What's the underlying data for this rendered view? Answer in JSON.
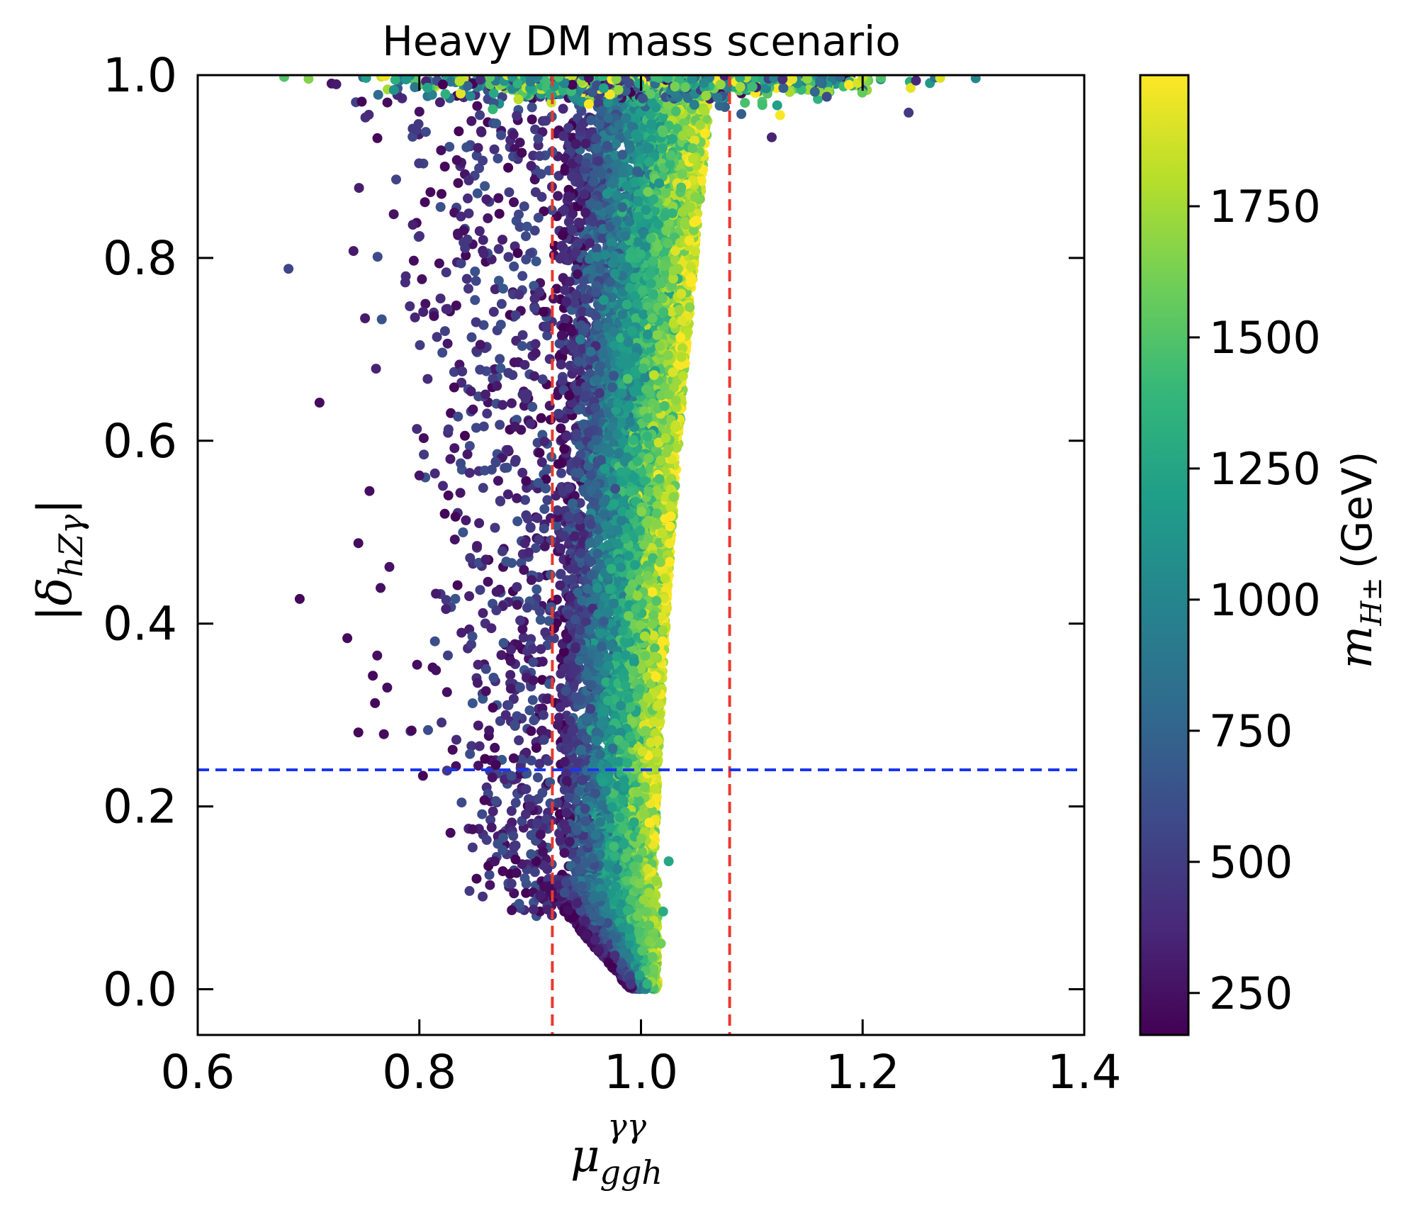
{
  "chart_data": {
    "type": "scatter",
    "title": "Heavy DM mass scenario",
    "xlabel": {
      "main": "μ",
      "sub": "ggh",
      "sup": "γγ"
    },
    "ylabel": {
      "open": "|",
      "main": "δ",
      "sub": "hZγ",
      "close": "|"
    },
    "colorbar_label": {
      "main": "m",
      "sub": "H±",
      "unit": "(GeV)"
    },
    "xlim": [
      0.6,
      1.4
    ],
    "ylim": [
      -0.05,
      1.0
    ],
    "x_ticks": [
      "0.6",
      "0.8",
      "1.0",
      "1.2",
      "1.4"
    ],
    "y_ticks": [
      "0.0",
      "0.2",
      "0.4",
      "0.6",
      "0.8",
      "1.0"
    ],
    "colorbar": {
      "range": [
        170,
        2000
      ],
      "ticks": [
        "250",
        "500",
        "750",
        "1000",
        "1250",
        "1500",
        "1750"
      ],
      "colormap": [
        "#440154",
        "#482878",
        "#3e4989",
        "#31688e",
        "#26828e",
        "#1f9e89",
        "#35b779",
        "#6ece58",
        "#b5de2b",
        "#fde725"
      ]
    },
    "reference_lines": [
      {
        "orientation": "vertical",
        "value": 0.92,
        "color": "#e8392e",
        "style": "dashed"
      },
      {
        "orientation": "vertical",
        "value": 1.08,
        "color": "#e8392e",
        "style": "dashed"
      },
      {
        "orientation": "horizontal",
        "value": 0.24,
        "color": "#1a35f0",
        "style": "dashed"
      }
    ],
    "outlier_points": [
      {
        "x": 0.692,
        "y": 0.427,
        "m": 200
      },
      {
        "x": 0.735,
        "y": 0.384,
        "m": 210
      },
      {
        "x": 0.745,
        "y": 0.488,
        "m": 220
      },
      {
        "x": 0.745,
        "y": 0.281,
        "m": 205
      },
      {
        "x": 0.755,
        "y": 0.545,
        "m": 230
      },
      {
        "x": 0.758,
        "y": 0.343,
        "m": 215
      },
      {
        "x": 0.76,
        "y": 0.313,
        "m": 210
      },
      {
        "x": 0.762,
        "y": 0.365,
        "m": 240
      },
      {
        "x": 0.765,
        "y": 0.439,
        "m": 250
      },
      {
        "x": 0.768,
        "y": 0.279,
        "m": 225
      },
      {
        "x": 0.771,
        "y": 0.33,
        "m": 235
      },
      {
        "x": 0.773,
        "y": 0.462,
        "m": 260
      },
      {
        "x": 0.793,
        "y": 0.283,
        "m": 210
      },
      {
        "x": 0.795,
        "y": 0.797,
        "m": 220
      },
      {
        "x": 0.798,
        "y": 0.355,
        "m": 240
      },
      {
        "x": 0.8,
        "y": 0.562,
        "m": 270
      },
      {
        "x": 0.805,
        "y": 0.861,
        "m": 210
      },
      {
        "x": 0.81,
        "y": 0.872,
        "m": 215
      },
      {
        "x": 0.812,
        "y": 0.352,
        "m": 230
      },
      {
        "x": 0.815,
        "y": 0.349,
        "m": 250
      },
      {
        "x": 0.818,
        "y": 0.794,
        "m": 230
      },
      {
        "x": 0.82,
        "y": 0.87,
        "m": 200
      },
      {
        "x": 0.823,
        "y": 0.9,
        "m": 210
      },
      {
        "x": 0.825,
        "y": 0.325,
        "m": 245
      },
      {
        "x": 0.828,
        "y": 0.58,
        "m": 300
      },
      {
        "x": 0.83,
        "y": 0.262,
        "m": 220
      },
      {
        "x": 0.832,
        "y": 0.492,
        "m": 260
      },
      {
        "x": 0.833,
        "y": 0.244,
        "m": 250
      },
      {
        "x": 0.835,
        "y": 0.882,
        "m": 220
      },
      {
        "x": 0.837,
        "y": 0.543,
        "m": 280
      },
      {
        "x": 0.838,
        "y": 0.39,
        "m": 320
      },
      {
        "x": 0.84,
        "y": 0.83,
        "m": 240
      },
      {
        "x": 0.842,
        "y": 0.513,
        "m": 300
      },
      {
        "x": 0.845,
        "y": 0.43,
        "m": 330
      },
      {
        "x": 0.848,
        "y": 0.175,
        "m": 250
      },
      {
        "x": 0.852,
        "y": 0.485,
        "m": 310
      },
      {
        "x": 0.853,
        "y": 0.355,
        "m": 350
      },
      {
        "x": 0.855,
        "y": 0.705,
        "m": 280
      },
      {
        "x": 0.86,
        "y": 0.47,
        "m": 320
      },
      {
        "x": 0.865,
        "y": 0.395,
        "m": 360
      },
      {
        "x": 0.868,
        "y": 0.14,
        "m": 260
      },
      {
        "x": 0.87,
        "y": 0.66,
        "m": 300
      },
      {
        "x": 0.875,
        "y": 0.82,
        "m": 320
      },
      {
        "x": 0.878,
        "y": 0.3,
        "m": 380
      },
      {
        "x": 0.88,
        "y": 0.59,
        "m": 350
      },
      {
        "x": 0.885,
        "y": 0.935,
        "m": 300
      },
      {
        "x": 0.888,
        "y": 0.44,
        "m": 400
      },
      {
        "x": 0.89,
        "y": 0.76,
        "m": 420
      },
      {
        "x": 0.893,
        "y": 0.565,
        "m": 380
      },
      {
        "x": 0.897,
        "y": 0.65,
        "m": 420
      },
      {
        "x": 0.9,
        "y": 0.2,
        "m": 350
      },
      {
        "x": 0.902,
        "y": 0.372,
        "m": 430
      },
      {
        "x": 0.905,
        "y": 0.872,
        "m": 450
      },
      {
        "x": 0.908,
        "y": 0.492,
        "m": 460
      },
      {
        "x": 0.912,
        "y": 0.3,
        "m": 480
      },
      {
        "x": 0.915,
        "y": 0.725,
        "m": 470
      },
      {
        "x": 0.725,
        "y": 0.99,
        "m": 300
      },
      {
        "x": 0.8,
        "y": 0.96,
        "m": 250
      },
      {
        "x": 0.855,
        "y": 0.995,
        "m": 400
      },
      {
        "x": 1.118,
        "y": 0.932,
        "m": 350
      },
      {
        "x": 0.678,
        "y": 0.998,
        "m": 1500
      },
      {
        "x": 0.7,
        "y": 0.996,
        "m": 1650
      },
      {
        "x": 0.752,
        "y": 0.997,
        "m": 1200
      },
      {
        "x": 1.15,
        "y": 0.996,
        "m": 1700
      },
      {
        "x": 1.2,
        "y": 0.998,
        "m": 1800
      },
      {
        "x": 1.27,
        "y": 0.997,
        "m": 1900
      },
      {
        "x": 1.025,
        "y": 0.14,
        "m": 1250
      },
      {
        "x": 1.02,
        "y": 0.085,
        "m": 1300
      },
      {
        "x": 1.018,
        "y": 0.05,
        "m": 1600
      },
      {
        "x": 0.99,
        "y": 0.92,
        "m": 900
      },
      {
        "x": 0.95,
        "y": 0.925,
        "m": 300
      }
    ]
  }
}
